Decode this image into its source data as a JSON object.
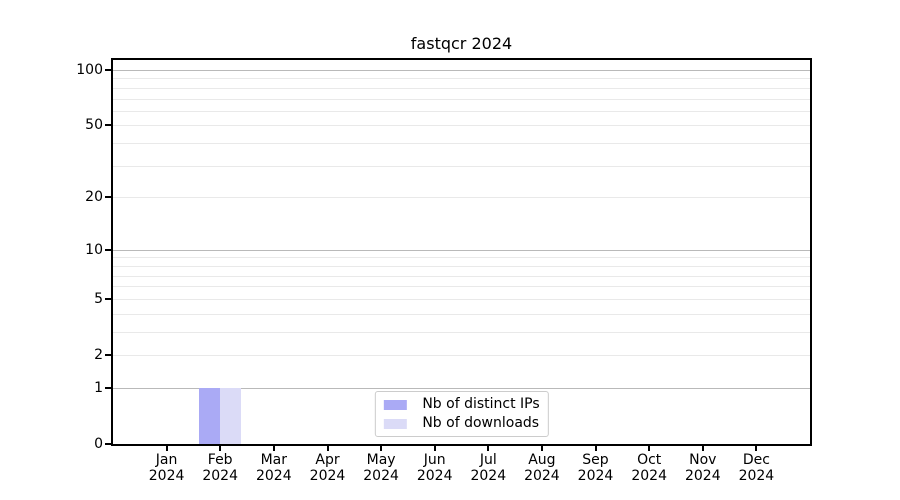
{
  "chart_data": {
    "type": "bar",
    "title": "fastqcr 2024",
    "categories": [
      "Jan 2024",
      "Feb 2024",
      "Mar 2024",
      "Apr 2024",
      "May 2024",
      "Jun 2024",
      "Jul 2024",
      "Aug 2024",
      "Sep 2024",
      "Oct 2024",
      "Nov 2024",
      "Dec 2024"
    ],
    "series": [
      {
        "name": "Nb of distinct IPs",
        "color": "#aaaaf5",
        "values": [
          0,
          1,
          0,
          0,
          0,
          0,
          0,
          0,
          0,
          0,
          0,
          0
        ]
      },
      {
        "name": "Nb of downloads",
        "color": "#dbdbf7",
        "values": [
          0,
          1,
          0,
          0,
          0,
          0,
          0,
          0,
          0,
          0,
          0,
          0
        ]
      }
    ],
    "xlabel": "",
    "ylabel": "",
    "y_axis": {
      "scale": "log1p",
      "tick_values": [
        0,
        1,
        2,
        5,
        10,
        20,
        50,
        100
      ],
      "tick_labels": [
        "0",
        "1",
        "2",
        "5",
        "10",
        "20",
        "50",
        "100"
      ],
      "major_gridlines": [
        1,
        10,
        100
      ],
      "minor_gridlines": [
        2,
        3,
        4,
        5,
        6,
        7,
        8,
        9,
        20,
        30,
        40,
        50,
        60,
        70,
        80,
        90
      ],
      "ylim": [
        0,
        113
      ]
    },
    "grid": true,
    "legend": {
      "position": "lower center"
    }
  },
  "style": {
    "background": "#ffffff",
    "axis_color": "#000000",
    "major_grid_color": "#b9b9b9",
    "minor_grid_color": "#e9e9e9",
    "legend_border_color": "#cccccc",
    "text_color": "#000000"
  }
}
